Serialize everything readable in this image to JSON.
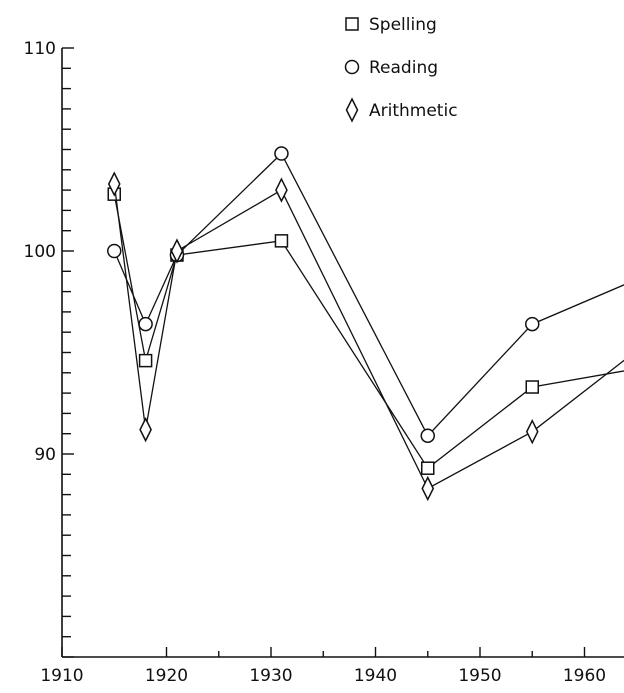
{
  "chart_data": {
    "type": "line",
    "title": "",
    "xlabel": "",
    "ylabel": "",
    "xlim": [
      1910,
      1966
    ],
    "ylim": [
      80,
      110
    ],
    "x_ticks": [
      1910,
      1920,
      1930,
      1940,
      1950,
      1960
    ],
    "y_tick_labels": [
      {
        "value": 110,
        "label": "110"
      },
      {
        "value": 100,
        "label": "100"
      },
      {
        "value": 90,
        "label": "90"
      }
    ],
    "y_minor_step": 1,
    "x_minor_ticks": [
      1925,
      1935,
      1945,
      1955,
      1965
    ],
    "grid": false,
    "legend_position": "top-right",
    "series": [
      {
        "name": "Spelling",
        "marker": "square",
        "x": [
          1915,
          1918,
          1921,
          1931,
          1945,
          1955,
          1965
        ],
        "y": [
          102.8,
          94.6,
          99.8,
          100.5,
          89.3,
          93.3,
          94.2
        ]
      },
      {
        "name": "Reading",
        "marker": "circle",
        "x": [
          1915,
          1918,
          1921,
          1931,
          1945,
          1955,
          1965
        ],
        "y": [
          100,
          96.4,
          99.8,
          104.8,
          90.9,
          96.4,
          98.6
        ]
      },
      {
        "name": "Arithmetic",
        "marker": "diamond",
        "x": [
          1915,
          1918,
          1921,
          1931,
          1945,
          1955,
          1965
        ],
        "y": [
          103.3,
          91.2,
          100,
          103.0,
          88.3,
          91.1,
          95.1
        ]
      }
    ]
  }
}
